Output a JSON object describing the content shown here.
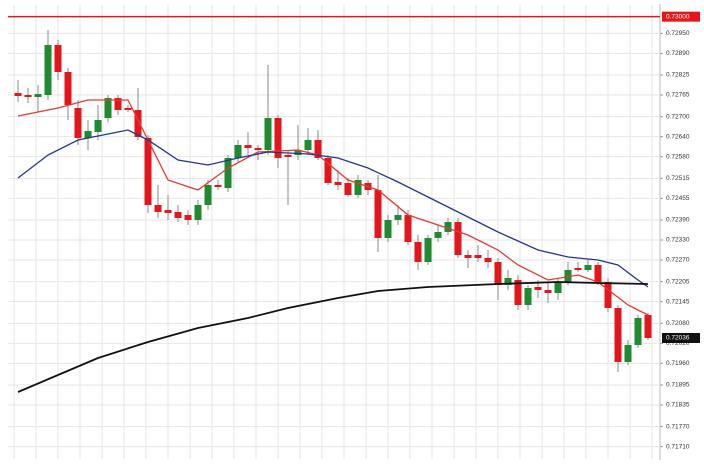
{
  "chart_data": {
    "type": "candlestick",
    "categories": [
      null,
      null,
      null,
      null,
      null,
      null,
      null,
      null,
      null,
      null,
      null,
      null,
      null,
      null,
      null,
      null,
      null,
      null,
      null,
      null,
      null,
      null,
      null,
      null,
      null,
      null,
      null,
      null,
      null,
      null,
      null,
      null,
      null,
      null,
      null,
      null,
      null,
      null,
      null,
      null,
      null,
      null,
      null,
      null,
      null,
      null,
      null,
      null,
      null,
      null,
      null,
      null,
      null,
      null,
      null,
      null,
      null,
      null,
      null,
      null,
      null,
      null,
      null,
      null
    ],
    "open": [
      0.72771,
      0.72765,
      0.72759,
      0.72765,
      0.72915,
      0.72834,
      0.72726,
      0.72636,
      0.72654,
      0.72696,
      0.72756,
      0.72726,
      0.7272,
      0.72636,
      0.72435,
      0.7242,
      0.72414,
      0.72405,
      0.7239,
      0.72435,
      0.72495,
      0.72486,
      0.72576,
      0.72615,
      0.72606,
      0.726,
      0.72696,
      0.72585,
      0.72585,
      0.726,
      0.7263,
      0.72576,
      0.72504,
      0.72501,
      0.72465,
      0.72501,
      0.7248,
      0.72336,
      0.7239,
      0.72405,
      0.72324,
      0.72264,
      0.72336,
      0.72354,
      0.72384,
      0.72285,
      0.72285,
      0.72276,
      0.72264,
      0.72195,
      0.7221,
      0.72135,
      0.72189,
      0.7218,
      0.72171,
      0.72204,
      0.72246,
      0.7224,
      0.72255,
      0.72204,
      0.72126,
      0.71964,
      0.72015,
      0.72105
    ],
    "high": [
      0.7281,
      0.72786,
      0.72795,
      0.7296,
      0.7293,
      0.72846,
      0.7275,
      0.7269,
      0.72735,
      0.72765,
      0.72765,
      0.72735,
      0.72786,
      0.72645,
      0.72495,
      0.72465,
      0.72435,
      0.7242,
      0.7245,
      0.7251,
      0.7251,
      0.72585,
      0.7263,
      0.72654,
      0.72615,
      0.72855,
      0.72705,
      0.726,
      0.72675,
      0.72666,
      0.7266,
      0.72585,
      0.7254,
      0.72516,
      0.72525,
      0.7251,
      0.72525,
      0.72405,
      0.72435,
      0.7242,
      0.72345,
      0.72345,
      0.72375,
      0.72396,
      0.72396,
      0.723,
      0.72315,
      0.723,
      0.72276,
      0.7224,
      0.72225,
      0.72195,
      0.7221,
      0.72201,
      0.72216,
      0.72264,
      0.72264,
      0.7227,
      0.72264,
      0.72216,
      0.72135,
      0.7203,
      0.72105,
      0.72111
    ],
    "low": [
      0.72744,
      0.72741,
      0.72714,
      0.7275,
      0.7281,
      0.7269,
      0.72615,
      0.726,
      0.7263,
      0.72684,
      0.72705,
      0.72714,
      0.7263,
      0.72411,
      0.72396,
      0.7239,
      0.72384,
      0.72375,
      0.72375,
      0.7242,
      0.7248,
      0.72474,
      0.72564,
      0.72585,
      0.7257,
      0.72585,
      0.72546,
      0.72435,
      0.7257,
      0.72585,
      0.7257,
      0.72495,
      0.7248,
      0.72459,
      0.72456,
      0.72465,
      0.72294,
      0.72324,
      0.72375,
      0.72315,
      0.7224,
      0.72255,
      0.72324,
      0.72345,
      0.72276,
      0.72246,
      0.72264,
      0.72246,
      0.7215,
      0.7218,
      0.7212,
      0.7212,
      0.72156,
      0.72141,
      0.7215,
      0.72195,
      0.72234,
      0.72234,
      0.72195,
      0.72114,
      0.71934,
      0.71955,
      0.72006,
      0.7203
    ],
    "close": [
      0.72762,
      0.72759,
      0.72768,
      0.72915,
      0.72834,
      0.72735,
      0.72636,
      0.72657,
      0.7269,
      0.72756,
      0.7272,
      0.7272,
      0.72639,
      0.72435,
      0.72414,
      0.72411,
      0.72396,
      0.7239,
      0.72435,
      0.72495,
      0.72489,
      0.72576,
      0.72615,
      0.72606,
      0.726,
      0.72696,
      0.72576,
      0.72579,
      0.726,
      0.7263,
      0.72576,
      0.72501,
      0.72495,
      0.72465,
      0.7251,
      0.7248,
      0.72336,
      0.7239,
      0.72405,
      0.72324,
      0.72264,
      0.72336,
      0.72354,
      0.72384,
      0.72285,
      0.72276,
      0.72276,
      0.72264,
      0.72195,
      0.72216,
      0.72135,
      0.72186,
      0.7218,
      0.72171,
      0.72204,
      0.7224,
      0.7224,
      0.72255,
      0.72204,
      0.72126,
      0.71964,
      0.72015,
      0.72096,
      0.72036
    ],
    "up_color": "#1f8a2f",
    "down_color": "#e3161c",
    "wick_color": "#8a8a8a",
    "lines": [
      {
        "color": "#e53935",
        "x": [
          0,
          4,
          7,
          11,
          13,
          15,
          18,
          21,
          24,
          28,
          30,
          33,
          36,
          39,
          42,
          45,
          48,
          50,
          53,
          56,
          58,
          61,
          63
        ],
        "values": [
          0.72702,
          0.72726,
          0.7275,
          0.7275,
          0.7263,
          0.7251,
          0.7248,
          0.72546,
          0.72594,
          0.726,
          0.72585,
          0.7251,
          0.7248,
          0.72405,
          0.72375,
          0.72345,
          0.723,
          0.72255,
          0.7221,
          0.72225,
          0.72204,
          0.72135,
          0.72105
        ]
      },
      {
        "color": "#27358a",
        "x": [
          0,
          3,
          6,
          11,
          13,
          16,
          19,
          22,
          25,
          29,
          32,
          35,
          38,
          41,
          44,
          48,
          52,
          55,
          58,
          60,
          62,
          63
        ],
        "values": [
          0.72516,
          0.72585,
          0.7263,
          0.7266,
          0.7263,
          0.7257,
          0.72555,
          0.72576,
          0.72594,
          0.72588,
          0.72576,
          0.72546,
          0.72504,
          0.72459,
          0.72414,
          0.72354,
          0.723,
          0.72279,
          0.7227,
          0.72255,
          0.7221,
          0.72189
        ]
      },
      {
        "color": "#111111",
        "x": [
          0,
          4,
          8,
          13,
          18,
          23,
          27,
          32,
          36,
          41,
          48,
          54,
          58,
          63
        ],
        "values": [
          0.71874,
          0.71925,
          0.71976,
          0.72024,
          0.72066,
          0.72096,
          0.72126,
          0.72156,
          0.72177,
          0.72189,
          0.72198,
          0.72204,
          0.72201,
          0.72198
        ]
      }
    ],
    "level_line": {
      "value": 0.73,
      "label": "0.73000",
      "color": "#e3161c"
    },
    "last_price": {
      "value": 0.72036,
      "label": "0.72036"
    },
    "ylim": [
      0.71673,
      0.73035
    ],
    "yticks": [
      {
        "value": 0.7295,
        "label": "0.72950"
      },
      {
        "value": 0.7289,
        "label": "0.72890"
      },
      {
        "value": 0.72825,
        "label": "0.72825"
      },
      {
        "value": 0.72765,
        "label": "0.72765"
      },
      {
        "value": 0.727,
        "label": "0.72700"
      },
      {
        "value": 0.7264,
        "label": "0.72640"
      },
      {
        "value": 0.7258,
        "label": "0.72580"
      },
      {
        "value": 0.72515,
        "label": "0.72515"
      },
      {
        "value": 0.72455,
        "label": "0.72455"
      },
      {
        "value": 0.7239,
        "label": "0.72390"
      },
      {
        "value": 0.7233,
        "label": "0.72330"
      },
      {
        "value": 0.7227,
        "label": "0.72270"
      },
      {
        "value": 0.72205,
        "label": "0.72205"
      },
      {
        "value": 0.72145,
        "label": "0.72145"
      },
      {
        "value": 0.7208,
        "label": "0.72080"
      },
      {
        "value": 0.7202,
        "label": "0.72020"
      },
      {
        "value": 0.7196,
        "label": "0.71960"
      },
      {
        "value": 0.71895,
        "label": "0.71895"
      },
      {
        "value": 0.71835,
        "label": "0.71835"
      },
      {
        "value": 0.7177,
        "label": "0.71770"
      },
      {
        "value": 0.7171,
        "label": "0.71710"
      }
    ],
    "grid": true
  }
}
